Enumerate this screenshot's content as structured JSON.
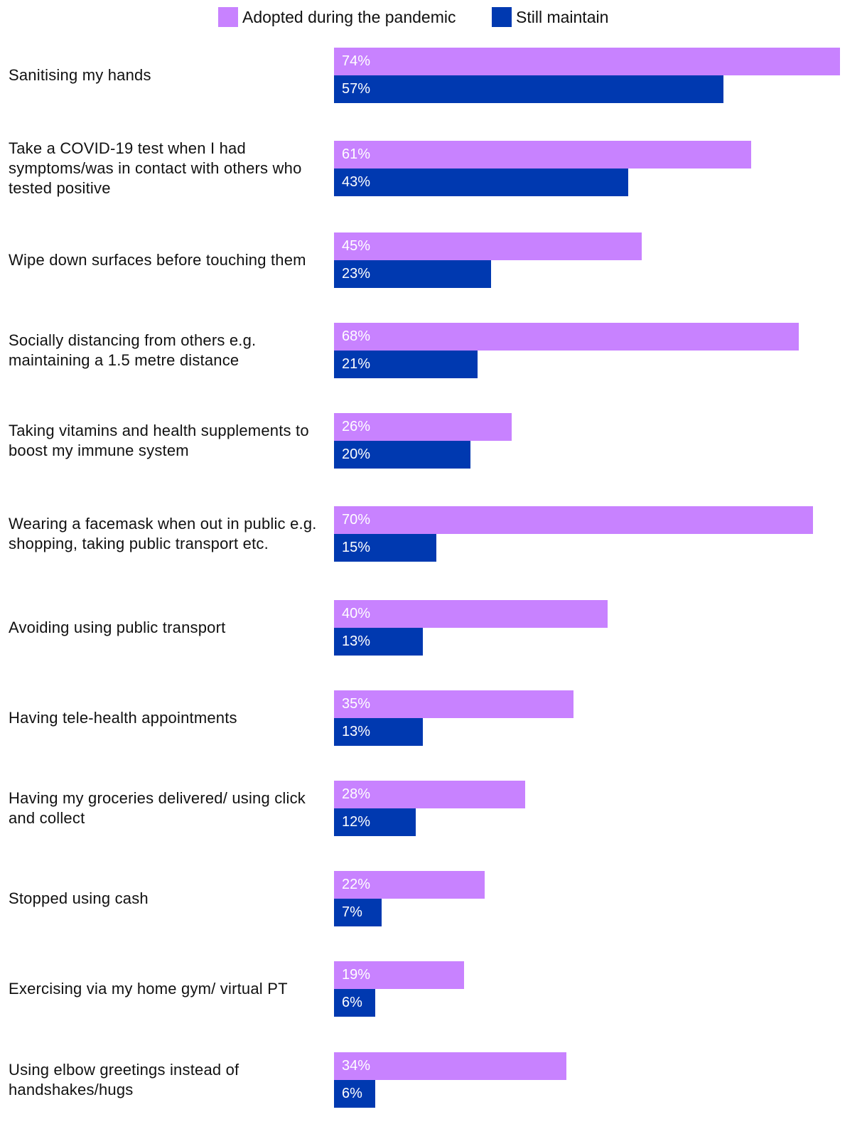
{
  "chart_data": {
    "type": "bar",
    "orientation": "horizontal",
    "title": "",
    "xlabel": "",
    "ylabel": "",
    "xlim": [
      0,
      74
    ],
    "legend_position": "top-center",
    "categories": [
      "Sanitising my hands",
      "Take a COVID-19 test when I had symptoms/was in contact with others who tested positive",
      "Wipe down surfaces before touching them",
      "Socially distancing from others e.g. maintaining a 1.5 metre distance",
      "Taking vitamins and health supplements to boost my immune system",
      "Wearing a facemask when out in public e.g. shopping, taking public transport etc.",
      "Avoiding using public transport",
      "Having tele-health appointments",
      "Having my groceries delivered/ using click and collect",
      "Stopped using cash",
      "Exercising via my home gym/ virtual PT",
      "Using elbow greetings instead of handshakes/hugs"
    ],
    "series": [
      {
        "name": "Adopted during the pandemic",
        "color": "#c882ff",
        "values": [
          74,
          61,
          45,
          68,
          26,
          70,
          40,
          35,
          28,
          22,
          19,
          34
        ],
        "labels": [
          "74%",
          "61%",
          "45%",
          "68%",
          "26%",
          "70%",
          "40%",
          "35%",
          "28%",
          "22%",
          "19%",
          "34%"
        ]
      },
      {
        "name": "Still maintain",
        "color": "#0039b0",
        "values": [
          57,
          43,
          23,
          21,
          20,
          15,
          13,
          13,
          12,
          7,
          6,
          6
        ],
        "labels": [
          "57%",
          "43%",
          "23%",
          "21%",
          "20%",
          "15%",
          "13%",
          "13%",
          "12%",
          "7%",
          "6%",
          "6%"
        ]
      }
    ]
  }
}
